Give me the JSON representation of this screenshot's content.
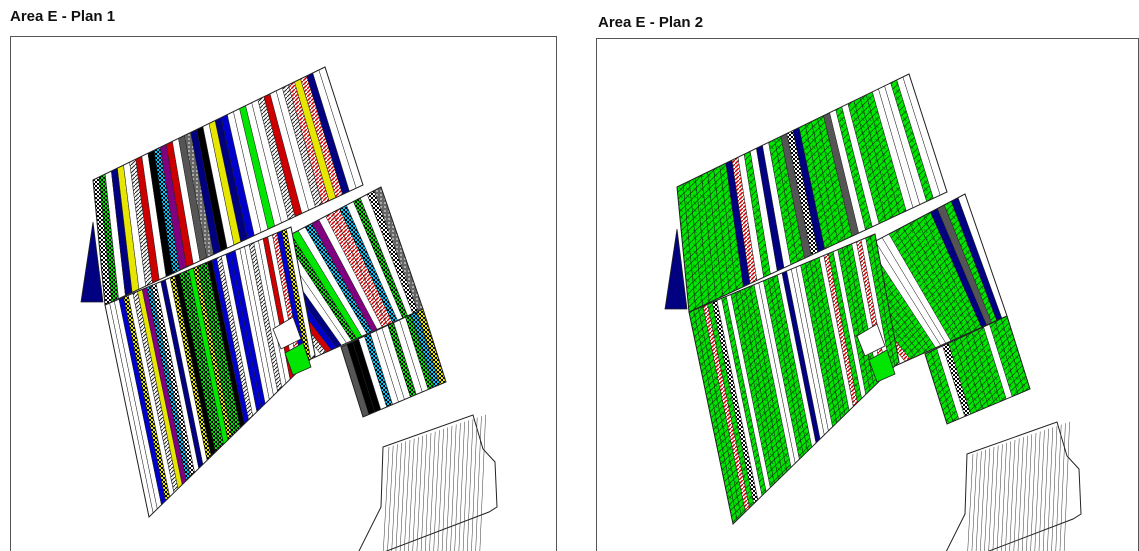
{
  "panels": [
    {
      "title": "Area E - Plan 1",
      "scheme": "multi"
    },
    {
      "title": "Area E - Plan 2",
      "scheme": "green"
    }
  ],
  "colors": {
    "outline": "#222222",
    "green": "#00e600",
    "navy": "#000080",
    "blue": "#0000cc",
    "red": "#cc0000",
    "purple": "#800080",
    "magenta": "#ff00ff",
    "cyan": "#00c8ff",
    "yellow": "#e6e600",
    "black": "#000000",
    "gray": "#555555",
    "dark_green": "#006400"
  }
}
